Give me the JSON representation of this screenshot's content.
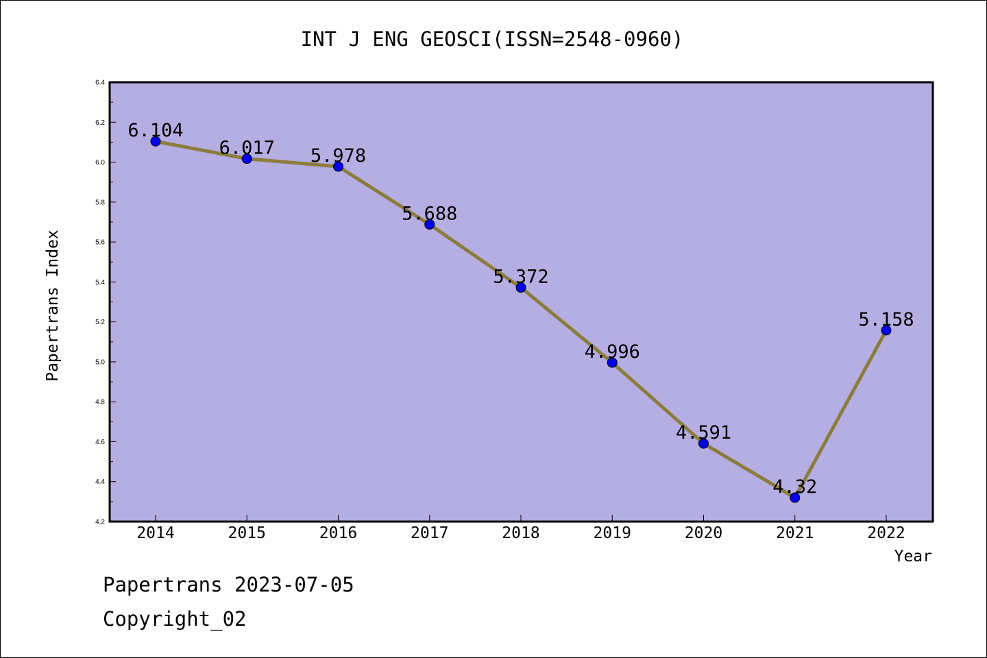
{
  "chart_data": {
    "type": "line",
    "title": "INT J ENG GEOSCI(ISSN=2548-0960)",
    "xlabel": "Year",
    "ylabel": "Papertrans Index",
    "categories": [
      "2014",
      "2015",
      "2016",
      "2017",
      "2018",
      "2019",
      "2020",
      "2021",
      "2022"
    ],
    "values": [
      6.104,
      6.017,
      5.978,
      5.688,
      5.372,
      4.996,
      4.591,
      4.32,
      5.158
    ],
    "data_labels": [
      "6.104",
      "6.017",
      "5.978",
      "5.688",
      "5.372",
      "4.996",
      "4.591",
      "4.32",
      "5.158"
    ],
    "ylim": [
      4.2,
      6.4
    ],
    "yticks": [
      "4.2",
      "4.4",
      "4.6",
      "4.8",
      "5.0",
      "5.2",
      "5.4",
      "5.6",
      "5.8",
      "6.0",
      "6.2",
      "6.4"
    ],
    "grid": false,
    "legend": "none",
    "colors": {
      "plot_background": "#b5aee2",
      "line": "#8c7c3c",
      "marker": "#0000ee"
    }
  },
  "footer": {
    "line1": "Papertrans 2023-07-05",
    "line2": "Copyright_02"
  }
}
